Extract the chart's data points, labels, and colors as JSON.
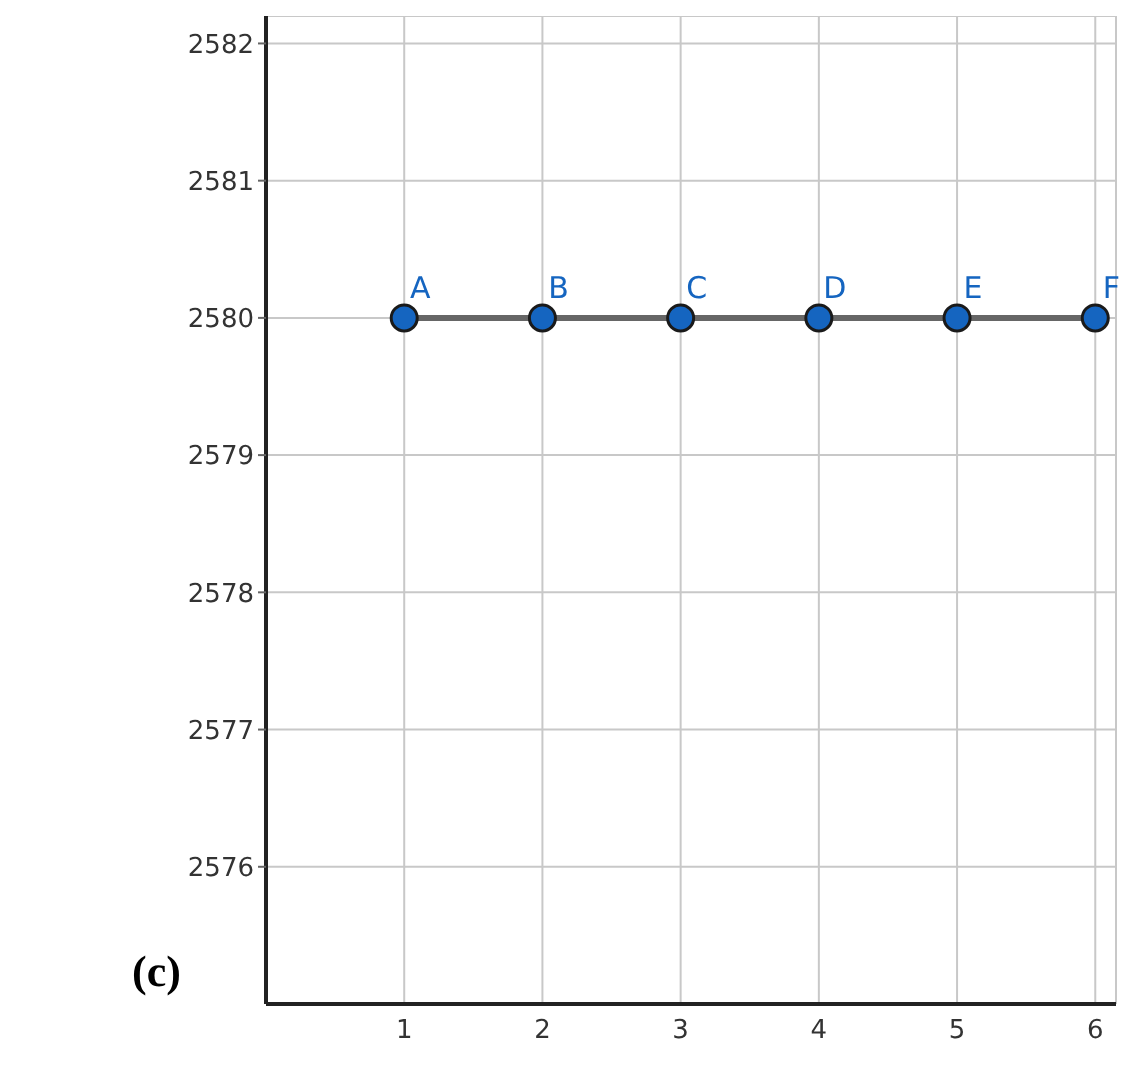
{
  "chart_data": {
    "type": "line",
    "x": [
      1,
      2,
      3,
      4,
      5,
      6
    ],
    "series": [
      {
        "color": "#666666",
        "values": [
          2580,
          2580,
          2580,
          2580,
          2580,
          2580
        ],
        "marker": "none"
      },
      {
        "type": "scatter",
        "color": "#1565c0",
        "values": [
          2580,
          2580,
          2580,
          2580,
          2580,
          2580
        ],
        "marker": "circle"
      }
    ],
    "xlim": [
      0,
      6.15
    ],
    "xticks": [
      1,
      2,
      3,
      4,
      5,
      6
    ],
    "ylim": [
      2575,
      2582.2
    ],
    "yticks": [
      2576,
      2577,
      2578,
      2579,
      2580,
      2581,
      2582
    ],
    "grid": true,
    "annotations": [
      {
        "text": "A",
        "x": 1,
        "y": 2580
      },
      {
        "text": "B",
        "x": 2,
        "y": 2580
      },
      {
        "text": "C",
        "x": 3,
        "y": 2580
      },
      {
        "text": "D",
        "x": 4,
        "y": 2580
      },
      {
        "text": "E",
        "x": 5,
        "y": 2580
      },
      {
        "text": "F",
        "x": 6,
        "y": 2580
      },
      "(c)"
    ]
  }
}
